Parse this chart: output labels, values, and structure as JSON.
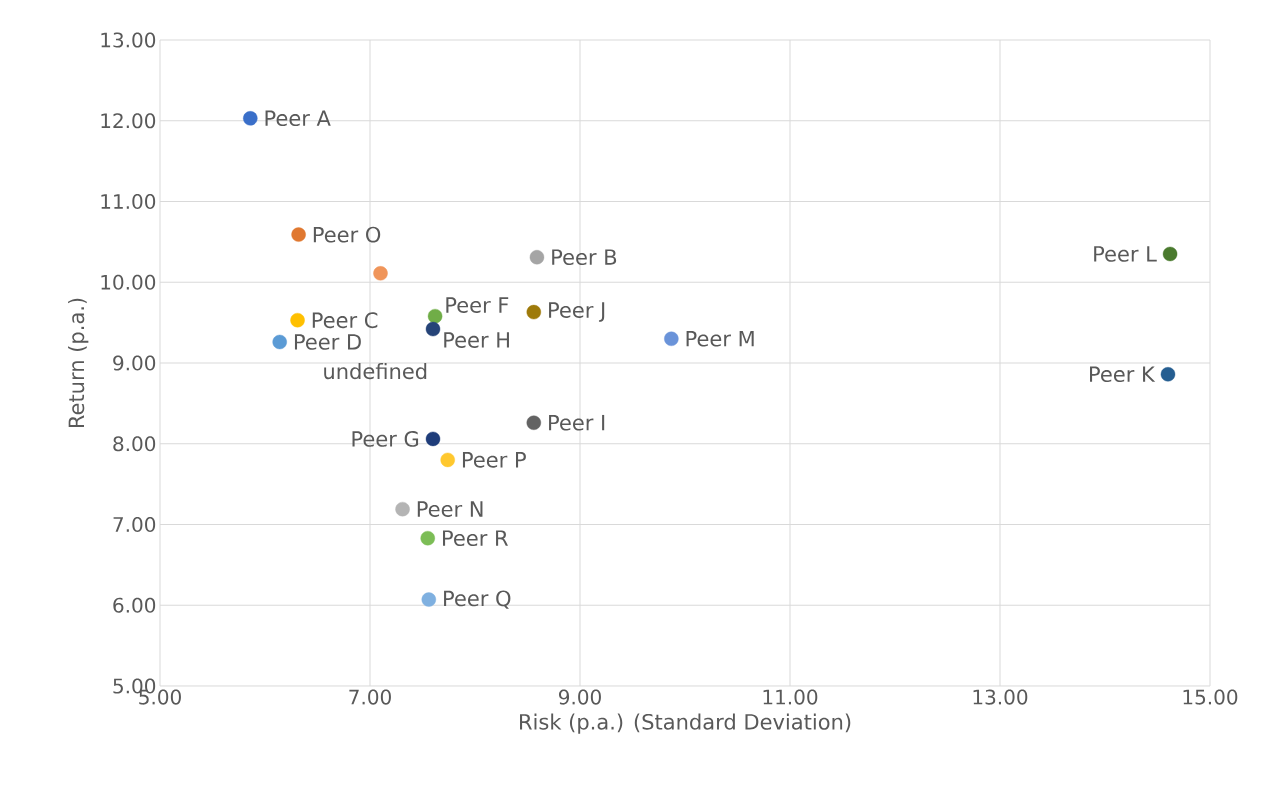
{
  "chart_data": {
    "type": "scatter",
    "xlabel": "Risk (p.a.) (Standard Deviation)",
    "ylabel": "Return (p.a.)",
    "xlim": [
      5,
      15
    ],
    "ylim": [
      5,
      13
    ],
    "xticks": [
      {
        "value": 5,
        "label": "5.00"
      },
      {
        "value": 7,
        "label": "7.00"
      },
      {
        "value": 9,
        "label": "9.00"
      },
      {
        "value": 11,
        "label": "11.00"
      },
      {
        "value": 13,
        "label": "13.00"
      },
      {
        "value": 15,
        "label": "15.00"
      }
    ],
    "yticks": [
      {
        "value": 5,
        "label": "5.00"
      },
      {
        "value": 6,
        "label": "6.00"
      },
      {
        "value": 7,
        "label": "7.00"
      },
      {
        "value": 8,
        "label": "8.00"
      },
      {
        "value": 9,
        "label": "9.00"
      },
      {
        "value": 10,
        "label": "10.00"
      },
      {
        "value": 11,
        "label": "11.00"
      },
      {
        "value": 12,
        "label": "12.00"
      },
      {
        "value": 13,
        "label": "13.00"
      }
    ],
    "grid": true,
    "legend": false,
    "marker": "circle",
    "annotations": [
      "undefined"
    ],
    "series": [
      {
        "name": "Peer A",
        "color": "#3a6fc9",
        "x": [
          5.86
        ],
        "values": [
          12.03
        ]
      },
      {
        "name": "Peer O",
        "color": "#e07830",
        "x": [
          6.32
        ],
        "values": [
          10.59
        ]
      },
      {
        "name": null,
        "color": "#f0955a",
        "x": [
          7.1
        ],
        "values": [
          10.11
        ]
      },
      {
        "name": "Peer B",
        "color": "#a5a5a5",
        "x": [
          8.59
        ],
        "values": [
          10.31
        ]
      },
      {
        "name": "Peer L",
        "color": "#4a7a2e",
        "x": [
          14.62
        ],
        "values": [
          10.35
        ]
      },
      {
        "name": "Peer C",
        "color": "#ffc000",
        "x": [
          6.31
        ],
        "values": [
          9.53
        ]
      },
      {
        "name": "Peer D",
        "color": "#5b9bd5",
        "x": [
          6.14
        ],
        "values": [
          9.26
        ]
      },
      {
        "name": "Peer F",
        "color": "#70ad47",
        "x": [
          7.62
        ],
        "values": [
          9.58
        ]
      },
      {
        "name": "Peer H",
        "color": "#264478",
        "x": [
          7.6
        ],
        "values": [
          9.42
        ]
      },
      {
        "name": "Peer J",
        "color": "#9e7a0a",
        "x": [
          8.56
        ],
        "values": [
          9.63
        ]
      },
      {
        "name": "Peer M",
        "color": "#6a93d9",
        "x": [
          9.87
        ],
        "values": [
          9.3
        ]
      },
      {
        "name": "Peer K",
        "color": "#255e91",
        "x": [
          14.6
        ],
        "values": [
          8.86
        ]
      },
      {
        "name": "Peer I",
        "color": "#636363",
        "x": [
          8.56
        ],
        "values": [
          8.26
        ]
      },
      {
        "name": "Peer G",
        "color": "#1f3d7a",
        "x": [
          7.6
        ],
        "values": [
          8.06
        ]
      },
      {
        "name": "Peer P",
        "color": "#ffc82e",
        "x": [
          7.74
        ],
        "values": [
          7.8
        ]
      },
      {
        "name": "Peer N",
        "color": "#b4b4b4",
        "x": [
          7.31
        ],
        "values": [
          7.19
        ]
      },
      {
        "name": "Peer R",
        "color": "#7cbd56",
        "x": [
          7.55
        ],
        "values": [
          6.83
        ]
      },
      {
        "name": "Peer Q",
        "color": "#7fb0e0",
        "x": [
          7.56
        ],
        "values": [
          6.07
        ]
      }
    ]
  }
}
